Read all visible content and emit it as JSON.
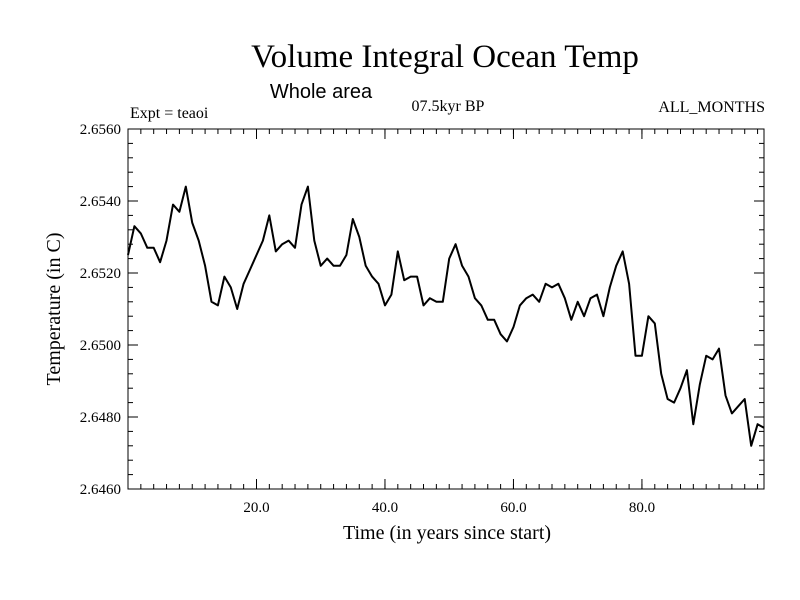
{
  "chart_data": {
    "type": "line",
    "title": "Volume Integral Ocean Temp",
    "subtitle": "Whole area",
    "header_left": "Expt = teaoi",
    "header_center": "07.5kyr BP",
    "header_right": "ALL_MONTHS",
    "xlabel": "Time (in years since start)",
    "ylabel": "Temperature (in C)",
    "xlim": [
      0,
      99
    ],
    "ylim": [
      2.646,
      2.656
    ],
    "xticks": [
      {
        "value": 20,
        "label": "20.0"
      },
      {
        "value": 40,
        "label": "40.0"
      },
      {
        "value": 60,
        "label": "60.0"
      },
      {
        "value": 80,
        "label": "80.0"
      }
    ],
    "yticks": [
      {
        "value": 2.646,
        "label": "2.6460"
      },
      {
        "value": 2.648,
        "label": "2.6480"
      },
      {
        "value": 2.65,
        "label": "2.6500"
      },
      {
        "value": 2.652,
        "label": "2.6520"
      },
      {
        "value": 2.654,
        "label": "2.6540"
      },
      {
        "value": 2.656,
        "label": "2.6560"
      }
    ],
    "x_minor_step": 2,
    "y_minor_step": 0.0004,
    "line_color": "#000000",
    "series": [
      {
        "name": "teaoi",
        "x": [
          0,
          1,
          2,
          3,
          4,
          5,
          6,
          7,
          8,
          9,
          10,
          11,
          12,
          13,
          14,
          15,
          16,
          17,
          18,
          19,
          20,
          21,
          22,
          23,
          24,
          25,
          26,
          27,
          28,
          29,
          30,
          31,
          32,
          33,
          34,
          35,
          36,
          37,
          38,
          39,
          40,
          41,
          42,
          43,
          44,
          45,
          46,
          47,
          48,
          49,
          50,
          51,
          52,
          53,
          54,
          55,
          56,
          57,
          58,
          59,
          60,
          61,
          62,
          63,
          64,
          65,
          66,
          67,
          68,
          69,
          70,
          71,
          72,
          73,
          74,
          75,
          76,
          77,
          78,
          79,
          80,
          81,
          82,
          83,
          84,
          85,
          86,
          87,
          88,
          89,
          90,
          91,
          92,
          93,
          94,
          95,
          96,
          97,
          98,
          99
        ],
        "values": [
          2.6525,
          2.6533,
          2.6531,
          2.6527,
          2.6527,
          2.6523,
          2.6529,
          2.6539,
          2.6537,
          2.6544,
          2.6534,
          2.6529,
          2.6522,
          2.6512,
          2.6511,
          2.6519,
          2.6516,
          2.651,
          2.6517,
          2.6521,
          2.6525,
          2.6529,
          2.6536,
          2.6526,
          2.6528,
          2.6529,
          2.6527,
          2.6539,
          2.6544,
          2.6529,
          2.6522,
          2.6524,
          2.6522,
          2.6522,
          2.6525,
          2.6535,
          2.653,
          2.6522,
          2.6519,
          2.6517,
          2.6511,
          2.6514,
          2.6526,
          2.6518,
          2.6519,
          2.6519,
          2.6511,
          2.6513,
          2.6512,
          2.6512,
          2.6524,
          2.6528,
          2.6522,
          2.6519,
          2.6513,
          2.6511,
          2.6507,
          2.6507,
          2.6503,
          2.6501,
          2.6505,
          2.6511,
          2.6513,
          2.6514,
          2.6512,
          2.6517,
          2.6516,
          2.6517,
          2.6513,
          2.6507,
          2.6512,
          2.6508,
          2.6513,
          2.6514,
          2.6508,
          2.6516,
          2.6522,
          2.6526,
          2.6517,
          2.6497,
          2.6497,
          2.6508,
          2.6506,
          2.6492,
          2.6485,
          2.6484,
          2.6488,
          2.6493,
          2.6478,
          2.6489,
          2.6497,
          2.6496,
          2.6499,
          2.6486,
          2.6481,
          2.6483,
          2.6485,
          2.6472,
          2.6478,
          2.6477
        ]
      }
    ]
  }
}
